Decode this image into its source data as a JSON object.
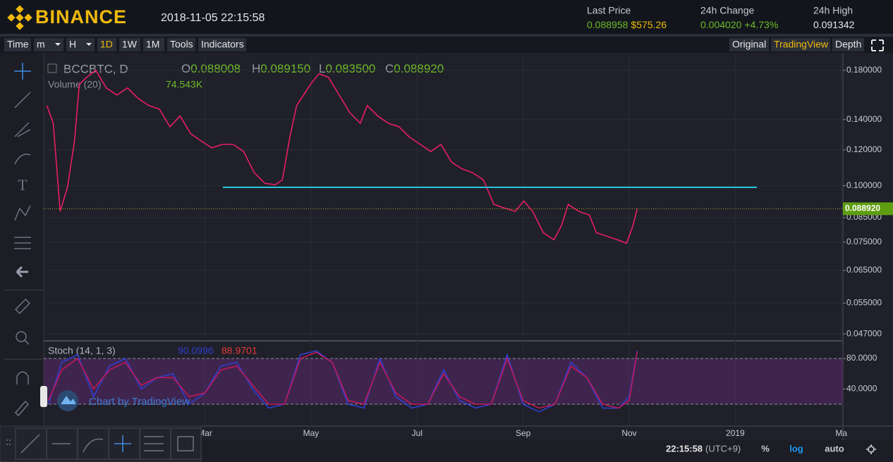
{
  "header": {
    "logo": "BINANCE",
    "datetime": "2018-11-05 22:15:58",
    "stats": [
      {
        "label": "Last Price",
        "value": "0.088958",
        "sub": "$575.26"
      },
      {
        "label": "24h Change",
        "value": "0.004020",
        "sub": "+4.73%"
      },
      {
        "label": "24h High",
        "value": "0.091342"
      }
    ]
  },
  "toolbar": {
    "left": [
      "Time",
      "m",
      "H",
      "1D",
      "1W",
      "1M",
      "Tools",
      "Indicators"
    ],
    "right": [
      "Original",
      "TradingView",
      "Depth"
    ],
    "active_left": 3,
    "active_right": 1
  },
  "legend": {
    "symbol": "BCCBTC, D",
    "ohlc": [
      {
        "key": "O",
        "value": "0.088008"
      },
      {
        "key": "H",
        "value": "0.089150"
      },
      {
        "key": "L",
        "value": "0.083500"
      },
      {
        "key": "C",
        "value": "0.088920"
      }
    ],
    "volume": "Volume (20)",
    "volume_value": "74.543K"
  },
  "watermark": "Chart by TradingView",
  "footer": {
    "time": "22:15:58",
    "tz": "(UTC+9)",
    "buttons": [
      "%",
      "log",
      "auto"
    ],
    "active": 1
  },
  "chart_data": [
    {
      "type": "line",
      "log": true,
      "grid": true,
      "series": [
        {
          "name": "BCCBTC, D",
          "color": "#e91e63",
          "values": [
            0.1504,
            0.1374,
            0.0877,
            0.0994,
            0.1256,
            0.1675,
            0.1736,
            0.18,
            0.1645,
            0.1587,
            0.1645,
            0.1559,
            0.1504,
            0.1477,
            0.135,
            0.1426,
            0.1303,
            0.1256,
            0.1212,
            0.1234,
            0.1234,
            0.119,
            0.1068,
            0.1012,
            0.1005,
            0.103,
            0.1279,
            0.1504,
            0.1587,
            0.1675,
            0.1768,
            0.1736,
            0.1587,
            0.1451,
            0.1374,
            0.1504,
            0.1426,
            0.1374,
            0.135,
            0.1279,
            0.1234,
            0.119,
            0.1234,
            0.1127,
            0.1089,
            0.1068,
            0.103,
            0.0909,
            0.0892,
            0.0877,
            0.0925,
            0.0877,
            0.0787,
            0.0759,
            0.0815,
            0.0909,
            0.0877,
            0.0861,
            0.0787,
            0.0773,
            0.0759,
            0.0746,
            0.0815,
            0.08892
          ]
        }
      ],
      "x": [
        0.02,
        0.14,
        0.27,
        0.41,
        0.54,
        0.63,
        0.77,
        0.94,
        1.14,
        1.34,
        1.54,
        1.74,
        1.94,
        2.14,
        2.34,
        2.53,
        2.73,
        2.93,
        3.13,
        3.33,
        3.53,
        3.73,
        3.93,
        4.13,
        4.33,
        4.46,
        4.6,
        4.73,
        4.86,
        4.99,
        5.15,
        5.33,
        5.53,
        5.73,
        5.93,
        6.06,
        6.26,
        6.46,
        6.66,
        6.86,
        7.06,
        7.26,
        7.45,
        7.65,
        7.85,
        8.05,
        8.25,
        8.45,
        8.65,
        8.85,
        9.01,
        9.18,
        9.38,
        9.58,
        9.72,
        9.85,
        10.05,
        10.25,
        10.38,
        10.58,
        10.78,
        10.95,
        11.07,
        11.15
      ],
      "xlim": [
        -0.04,
        15.03
      ],
      "xticks": [
        {
          "value": 3,
          "label": "Mar"
        },
        {
          "value": 5,
          "label": "May"
        },
        {
          "value": 7,
          "label": "Jul"
        },
        {
          "value": 9,
          "label": "Sep"
        },
        {
          "value": 11,
          "label": "Nov"
        },
        {
          "value": 13,
          "label": "2019"
        },
        {
          "value": 15,
          "label": "Ma"
        }
      ],
      "ylim": [
        0.0457,
        0.196
      ],
      "yticks": [
        {
          "value": 0.18,
          "label": "0.180000"
        },
        {
          "value": 0.14,
          "label": "0.140000"
        },
        {
          "value": 0.12,
          "label": "0.120000"
        },
        {
          "value": 0.1,
          "label": "0.100000"
        },
        {
          "value": 0.085,
          "label": "0.085000"
        },
        {
          "value": 0.075,
          "label": "0.075000"
        },
        {
          "value": 0.065,
          "label": "0.065000"
        },
        {
          "value": 0.055,
          "label": "0.055000"
        },
        {
          "value": 0.047,
          "label": "0.047000"
        }
      ]
    },
    {
      "type": "line",
      "title": "Stoch (14, 1, 3)",
      "x": [
        0.05,
        0.3,
        0.6,
        0.9,
        1.2,
        1.5,
        1.8,
        2.1,
        2.4,
        2.7,
        3.0,
        3.3,
        3.6,
        3.9,
        4.2,
        4.5,
        4.8,
        5.1,
        5.4,
        5.7,
        6.0,
        6.3,
        6.6,
        6.9,
        7.2,
        7.5,
        7.8,
        8.1,
        8.4,
        8.7,
        9.0,
        9.3,
        9.6,
        9.9,
        10.2,
        10.5,
        10.8,
        11.0,
        11.15
      ],
      "series": [
        {
          "color": "#2f3fd0",
          "values": [
            20,
            75,
            85,
            30,
            70,
            80,
            40,
            55,
            60,
            20,
            35,
            70,
            75,
            40,
            15,
            20,
            85,
            90,
            75,
            20,
            15,
            80,
            30,
            15,
            20,
            65,
            25,
            15,
            20,
            85,
            20,
            10,
            20,
            75,
            55,
            15,
            15,
            30,
            90.0996
          ]
        },
        {
          "color": "#c2185b",
          "values": [
            25,
            65,
            80,
            40,
            65,
            75,
            45,
            55,
            55,
            30,
            35,
            65,
            70,
            45,
            20,
            20,
            80,
            88,
            75,
            25,
            20,
            75,
            35,
            20,
            20,
            60,
            30,
            20,
            20,
            80,
            25,
            15,
            20,
            70,
            55,
            20,
            15,
            25,
            88.9701
          ]
        }
      ],
      "xlim": [
        -0.04,
        15.03
      ],
      "ylim": [
        -8.6,
        100.3
      ],
      "yticks": [
        {
          "value": 80,
          "label": "80.0000"
        },
        {
          "value": 40,
          "label": "40.0000"
        }
      ],
      "bands": [
        20,
        80
      ]
    }
  ]
}
